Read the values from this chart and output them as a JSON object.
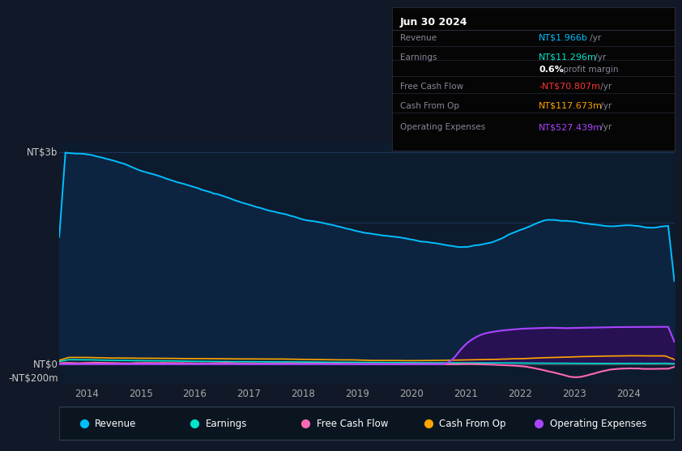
{
  "background_color": "#111827",
  "chart_bg": "#0d1b2e",
  "info_box_bg": "#000000",
  "y_label_top": "NT$3b",
  "y_label_zero": "NT$0",
  "y_label_neg": "-NT$200m",
  "x_ticks": [
    "2014",
    "2015",
    "2016",
    "2017",
    "2018",
    "2019",
    "2020",
    "2021",
    "2022",
    "2023",
    "2024"
  ],
  "info_box": {
    "title": "Jun 30 2024",
    "rows": [
      {
        "label": "Revenue",
        "value": "NT$1.966b",
        "suffix": " /yr",
        "value_color": "#00bfff"
      },
      {
        "label": "Earnings",
        "value": "NT$11.296m",
        "suffix": " /yr",
        "value_color": "#00e5cc"
      },
      {
        "label": "",
        "value": "0.6%",
        "suffix": " profit margin",
        "value_color": "white",
        "bold": true
      },
      {
        "label": "Free Cash Flow",
        "value": "-NT$70.807m",
        "suffix": " /yr",
        "value_color": "#ff3333"
      },
      {
        "label": "Cash From Op",
        "value": "NT$117.673m",
        "suffix": " /yr",
        "value_color": "#ffa500"
      },
      {
        "label": "Operating Expenses",
        "value": "NT$527.439m",
        "suffix": " /yr",
        "value_color": "#aa44ff"
      }
    ]
  },
  "legend": [
    {
      "label": "Revenue",
      "color": "#00bfff"
    },
    {
      "label": "Earnings",
      "color": "#00e5cc"
    },
    {
      "label": "Free Cash Flow",
      "color": "#ff69b4"
    },
    {
      "label": "Cash From Op",
      "color": "#ffa500"
    },
    {
      "label": "Operating Expenses",
      "color": "#aa44ff"
    }
  ],
  "grid_color": "#1e3a5f",
  "line_color_revenue": "#00bfff",
  "line_color_earnings": "#00e5cc",
  "line_color_fcf": "#ff69b4",
  "line_color_cashop": "#ffa500",
  "line_color_opex": "#aa44ff",
  "fill_revenue": "#0d2440",
  "fill_opex": "#2a1055",
  "ymin": -0.28,
  "ymax": 3.15,
  "xmin": 2013.5,
  "xmax": 2024.85
}
